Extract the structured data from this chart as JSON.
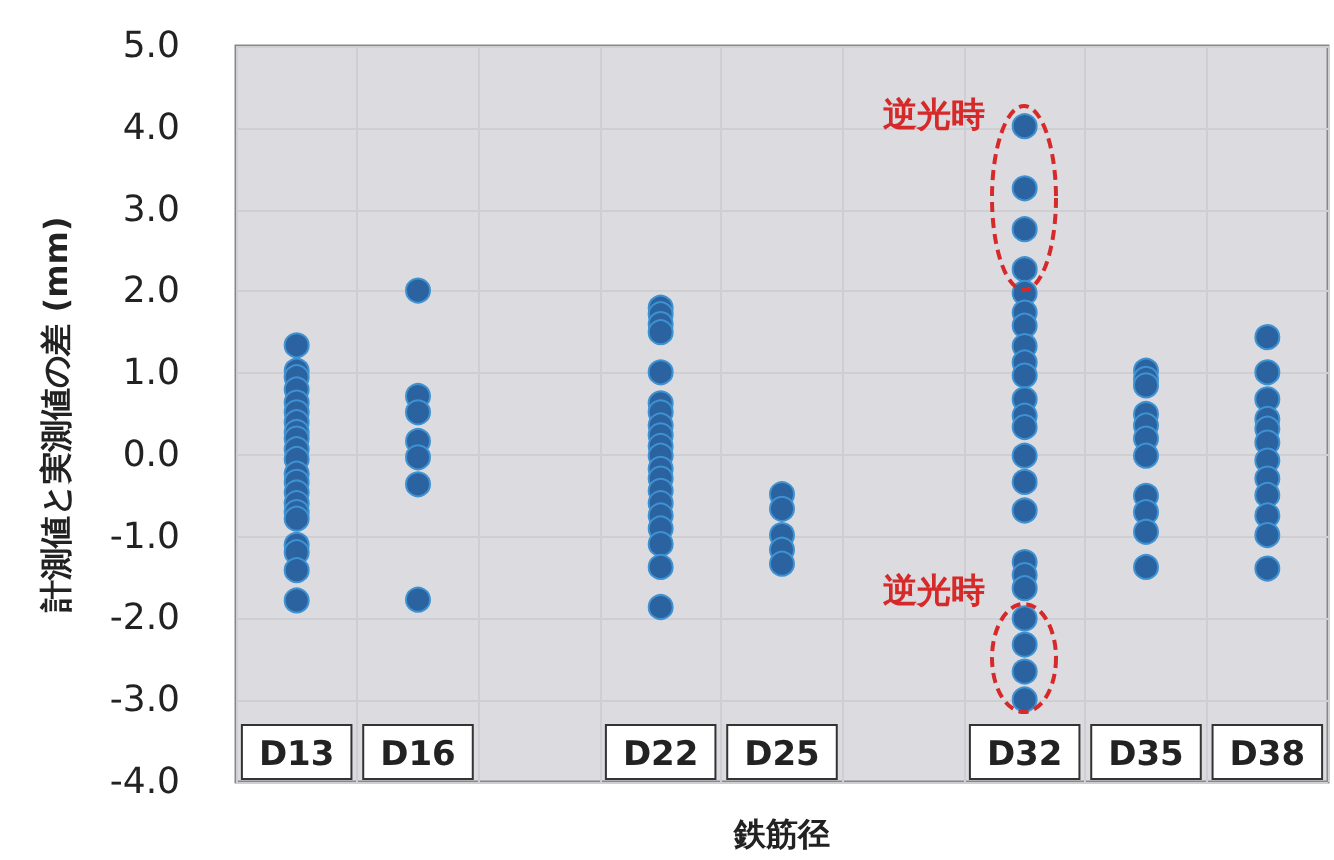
{
  "chart_data": {
    "type": "scatter",
    "xlabel": "鉄筋径",
    "ylabel": "計測値と実測値の差 (mm)",
    "categories": [
      "D13",
      "D16",
      null,
      "D22",
      "D25",
      null,
      "D32",
      "D35",
      "D38"
    ],
    "ylim": [
      -4,
      5
    ],
    "yticks": [
      {
        "value": -4,
        "label": "-4.0"
      },
      {
        "value": -3,
        "label": "-3.0"
      },
      {
        "value": -2,
        "label": "-2.0"
      },
      {
        "value": -1,
        "label": "-1.0"
      },
      {
        "value": 0,
        "label": "0.0"
      },
      {
        "value": 1,
        "label": "1.0"
      },
      {
        "value": 2,
        "label": "2.0"
      },
      {
        "value": 3,
        "label": "3.0"
      },
      {
        "value": 4,
        "label": "4.0"
      },
      {
        "value": 5,
        "label": "5.0"
      }
    ],
    "grid": true,
    "marker": "circle",
    "annotations": [
      {
        "text": "逆光時",
        "x": "D32",
        "y": 4.02
      },
      {
        "text": "逆光時",
        "x": "D32",
        "y": -2.0
      }
    ],
    "series": [
      {
        "color": "#2b62a0",
        "x": [
          "D13",
          "D13",
          "D13",
          "D13",
          "D13",
          "D13",
          "D13",
          "D13",
          "D13",
          "D13",
          "D13",
          "D13",
          "D13",
          "D13",
          "D13",
          "D13",
          "D13",
          "D13",
          "D13",
          "D13",
          "D13",
          "D16",
          "D16",
          "D16",
          "D16",
          "D16",
          "D16",
          "D16",
          "D22",
          "D22",
          "D22",
          "D22",
          "D22",
          "D22",
          "D22",
          "D22",
          "D22",
          "D22",
          "D22",
          "D22",
          "D22",
          "D22",
          "D22",
          "D22",
          "D22",
          "D22",
          "D22",
          "D22",
          "D25",
          "D25",
          "D25",
          "D25",
          "D25",
          "D32",
          "D32",
          "D32",
          "D32",
          "D32",
          "D32",
          "D32",
          "D32",
          "D32",
          "D32",
          "D32",
          "D32",
          "D32",
          "D32",
          "D32",
          "D32",
          "D32",
          "D32",
          "D32",
          "D32",
          "D32",
          "D32",
          "D32",
          "D35",
          "D35",
          "D35",
          "D35",
          "D35",
          "D35",
          "D35",
          "D35",
          "D35",
          "D35",
          "D35",
          "D38",
          "D38",
          "D38",
          "D38",
          "D38",
          "D38",
          "D38",
          "D38",
          "D38",
          "D38",
          "D38",
          "D38"
        ],
        "values": [
          1.34,
          1.03,
          0.95,
          0.8,
          0.64,
          0.52,
          0.4,
          0.28,
          0.2,
          0.07,
          -0.05,
          -0.23,
          -0.33,
          -0.46,
          -0.59,
          -0.7,
          -0.78,
          -1.1,
          -1.19,
          -1.41,
          -1.78,
          2.01,
          0.72,
          0.52,
          0.17,
          -0.03,
          -0.36,
          -1.77,
          1.8,
          1.72,
          1.6,
          1.5,
          1.01,
          0.63,
          0.52,
          0.36,
          0.24,
          0.11,
          -0.01,
          -0.17,
          -0.29,
          -0.44,
          -0.59,
          -0.74,
          -0.9,
          -1.09,
          -1.37,
          -1.86,
          -0.48,
          -0.66,
          -0.98,
          -1.16,
          -1.33,
          4.02,
          3.26,
          2.76,
          2.27,
          1.98,
          1.74,
          1.58,
          1.33,
          1.13,
          0.97,
          0.68,
          0.48,
          0.34,
          -0.01,
          -0.33,
          -0.68,
          -1.31,
          -1.47,
          -1.63,
          -2.0,
          -2.32,
          -2.65,
          -2.99,
          1.03,
          0.93,
          0.85,
          0.5,
          0.36,
          0.2,
          -0.01,
          -0.5,
          -0.7,
          -0.94,
          -1.37,
          1.44,
          1.01,
          0.68,
          0.44,
          0.32,
          0.15,
          -0.07,
          -0.29,
          -0.49,
          -0.74,
          -0.98,
          -1.39
        ]
      }
    ]
  }
}
